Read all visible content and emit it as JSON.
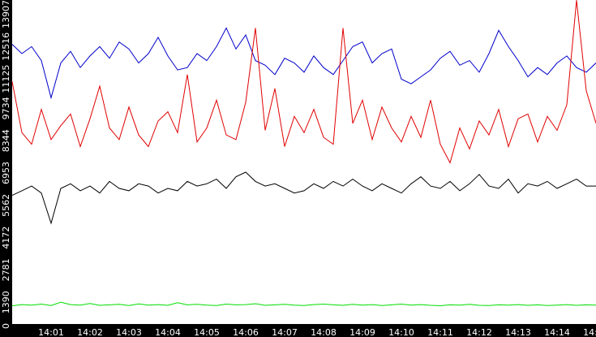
{
  "chart_data": {
    "type": "line",
    "categories": [
      null,
      null,
      null,
      null,
      "14:01",
      null,
      null,
      null,
      "14:02",
      null,
      null,
      null,
      "14:03",
      null,
      null,
      null,
      "14:04",
      null,
      null,
      null,
      "14:05",
      null,
      null,
      null,
      "14:06",
      null,
      null,
      null,
      "14:07",
      null,
      null,
      null,
      "14:08",
      null,
      null,
      null,
      "14:09",
      null,
      null,
      null,
      "14:10",
      null,
      null,
      null,
      "14:11",
      null,
      null,
      null,
      "14:12",
      null,
      null,
      null,
      "14:13",
      null,
      null,
      null,
      "14:14",
      null,
      null,
      null,
      "14:15"
    ],
    "series": [
      {
        "color": "#0000cc",
        "values": [
          12000,
          11600,
          11900,
          11300,
          9700,
          11200,
          11700,
          11000,
          11500,
          11900,
          11400,
          12100,
          11800,
          11200,
          11600,
          12300,
          11500,
          10900,
          11000,
          11600,
          11300,
          11900,
          12700,
          11800,
          12400,
          11300,
          11100,
          10700,
          11400,
          11200,
          10800,
          11500,
          11000,
          10700,
          11300,
          11900,
          12100,
          11200,
          11600,
          11800,
          10500,
          10300,
          10600,
          10900,
          11400,
          11700,
          11100,
          11300,
          10800,
          11600,
          12600,
          11900,
          11300,
          10600,
          11000,
          10700,
          11200,
          11500,
          11000,
          10800,
          11200
        ]
      },
      {
        "color": "#e00000",
        "values": [
          10400,
          8200,
          7700,
          9200,
          7900,
          8500,
          9000,
          7600,
          8800,
          10200,
          8400,
          7900,
          9300,
          8100,
          7600,
          8700,
          9100,
          8200,
          10700,
          7800,
          8400,
          9600,
          8100,
          7900,
          9500,
          12700,
          8300,
          10100,
          7600,
          8900,
          8200,
          9200,
          8000,
          7700,
          12700,
          8600,
          9600,
          7900,
          9300,
          8400,
          7800,
          8900,
          8000,
          9600,
          7700,
          6900,
          8400,
          7500,
          8700,
          8100,
          9200,
          7600,
          8800,
          9000,
          7800,
          8900,
          8300,
          9400,
          13900,
          10000,
          8600
        ]
      },
      {
        "color": "#000000",
        "values": [
          5500,
          5700,
          5900,
          5600,
          4300,
          5800,
          6000,
          5700,
          5900,
          5600,
          6100,
          5800,
          5700,
          6000,
          5900,
          5600,
          5800,
          5700,
          6100,
          5900,
          6000,
          6200,
          5800,
          6300,
          6500,
          6100,
          5900,
          6000,
          5800,
          5600,
          5700,
          6000,
          5800,
          6100,
          5900,
          6200,
          5900,
          5700,
          6000,
          5800,
          5600,
          6000,
          6300,
          5900,
          5800,
          6100,
          5700,
          6000,
          6400,
          5900,
          5800,
          6200,
          5600,
          6000,
          5900,
          6100,
          5800,
          6000,
          6200,
          5900,
          5900
        ]
      },
      {
        "color": "#00dd00",
        "values": [
          750,
          800,
          780,
          820,
          760,
          900,
          800,
          780,
          850,
          770,
          790,
          810,
          760,
          830,
          780,
          800,
          770,
          880,
          790,
          810,
          780,
          760,
          820,
          790,
          800,
          840,
          770,
          790,
          810,
          780,
          760,
          800,
          820,
          790,
          770,
          810,
          780,
          800,
          760,
          790,
          820,
          780,
          800,
          770,
          750,
          790,
          780,
          810,
          770,
          760,
          790,
          780,
          800,
          770,
          790,
          760,
          780,
          800,
          770,
          790,
          780
        ]
      }
    ],
    "ylim": [
      0,
      13907
    ],
    "yticks": [
      0,
      1390,
      2781,
      4172,
      5562,
      6953,
      8344,
      9734,
      11125,
      12516,
      13907
    ],
    "grid": false
  }
}
